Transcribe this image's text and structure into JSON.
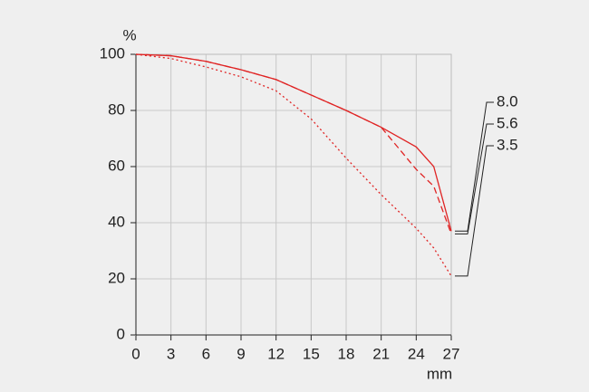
{
  "chart_data": {
    "type": "line",
    "y_label": "%",
    "x_label": "mm",
    "x": [
      0,
      3,
      6,
      9,
      12,
      15,
      18,
      21,
      24,
      25.5,
      27
    ],
    "series": [
      {
        "name": "8.0",
        "color": "#e02424",
        "line_style": "solid",
        "values": [
          100,
          99.5,
          97.5,
          94.5,
          91,
          85.5,
          80,
          74,
          67,
          60,
          37
        ]
      },
      {
        "name": "5.6",
        "color": "#e02424",
        "line_style": "dashed",
        "values": [
          100,
          99.5,
          97.5,
          94.5,
          91,
          85.5,
          80,
          74,
          59,
          53,
          36
        ]
      },
      {
        "name": "3.5",
        "color": "#e02424",
        "line_style": "dotted",
        "values": [
          100,
          98.5,
          95.5,
          92,
          87,
          77,
          63,
          50,
          38,
          31,
          21
        ]
      }
    ],
    "xlim": [
      0,
      27
    ],
    "xticks": [
      0,
      3,
      6,
      9,
      12,
      15,
      18,
      21,
      24,
      27
    ],
    "ylim": [
      0,
      100
    ],
    "yticks": [
      0,
      20,
      40,
      60,
      80,
      100
    ],
    "grid": true
  }
}
